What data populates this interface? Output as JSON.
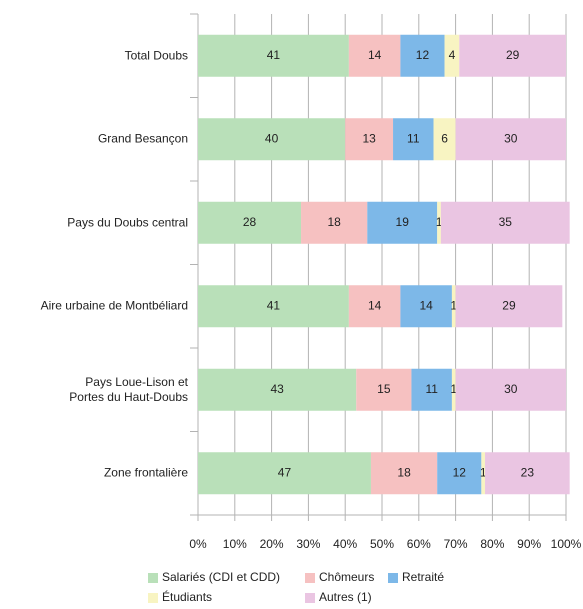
{
  "chart_data": {
    "type": "stacked_barh",
    "categories": [
      "Total Doubs",
      "Grand Besançon",
      "Pays du Doubs central",
      "Aire urbaine de Montbéliard",
      "Pays Loue-Lison et\nPortes du Haut-Doubs",
      "Zone frontalière"
    ],
    "series": [
      {
        "name": "Salariés (CDI et CDD)",
        "color": "#b9e0b9",
        "values": [
          41,
          40,
          28,
          41,
          43,
          47
        ]
      },
      {
        "name": "Chômeurs",
        "color": "#f6c1c1",
        "values": [
          14,
          13,
          18,
          14,
          15,
          18
        ]
      },
      {
        "name": "Retraité",
        "color": "#7db8e8",
        "values": [
          12,
          11,
          19,
          14,
          11,
          12
        ]
      },
      {
        "name": "Étudiants",
        "color": "#f8f4c2",
        "values": [
          4,
          6,
          1,
          1,
          1,
          1
        ]
      },
      {
        "name": "Autres (1)",
        "color": "#eac5e2",
        "values": [
          29,
          30,
          35,
          29,
          30,
          23
        ]
      }
    ],
    "xlim": [
      0,
      100
    ],
    "xticks": [
      {
        "value": 0,
        "label": "0%"
      },
      {
        "value": 10,
        "label": "10%"
      },
      {
        "value": 20,
        "label": "20%"
      },
      {
        "value": 30,
        "label": "30%"
      },
      {
        "value": 40,
        "label": "40%"
      },
      {
        "value": 50,
        "label": "50%"
      },
      {
        "value": 60,
        "label": "60%"
      },
      {
        "value": 70,
        "label": "70%"
      },
      {
        "value": 80,
        "label": "80%"
      },
      {
        "value": 90,
        "label": "90%"
      },
      {
        "value": 100,
        "label": "100%"
      }
    ],
    "grid": true
  }
}
